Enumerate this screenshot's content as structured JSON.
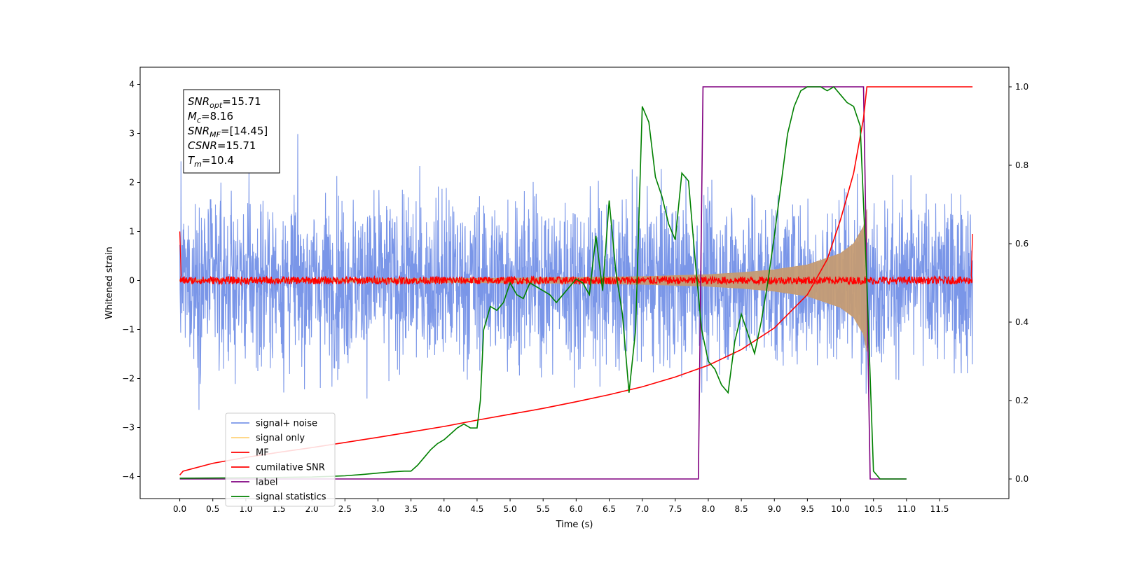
{
  "chart_data": {
    "type": "line",
    "xlabel": "Time (s)",
    "ylabel": "Whitened strain",
    "xlim": [
      -0.6,
      12.55
    ],
    "ylim": [
      -4.45,
      4.35
    ],
    "y2lim": [
      -0.05,
      1.05
    ],
    "xticks": [
      0.0,
      0.5,
      1.0,
      1.5,
      2.0,
      2.5,
      3.0,
      3.5,
      4.0,
      4.5,
      5.0,
      5.5,
      6.0,
      6.5,
      7.0,
      7.5,
      8.0,
      8.5,
      9.0,
      9.5,
      10.0,
      10.5,
      11.0,
      11.5
    ],
    "xtick_labels": [
      "0.0",
      "0.5",
      "1.0",
      "1.5",
      "2.0",
      "2.5",
      "3.0",
      "3.5",
      "4.0",
      "4.5",
      "5.0",
      "5.5",
      "6.0",
      "6.5",
      "7.0",
      "7.5",
      "8.0",
      "8.5",
      "9.0",
      "9.5",
      "10.0",
      "10.5",
      "11.0",
      "11.5"
    ],
    "yticks": [
      4,
      3,
      2,
      1,
      0,
      -1,
      -2,
      -3,
      -4
    ],
    "ytick_labels": [
      "4",
      "3",
      "2",
      "1",
      "0",
      "−1",
      "−2",
      "−3",
      "−4"
    ],
    "y2ticks": [
      1.0,
      0.8,
      0.6,
      0.4,
      0.2,
      0.0
    ],
    "y2tick_labels": [
      "1.0",
      "0.8",
      "0.6",
      "0.4",
      "0.2",
      "0.0"
    ],
    "annotation": [
      {
        "main": "SNR",
        "sub": "opt",
        "rest": "=15.71"
      },
      {
        "main": "M",
        "sub": "c",
        "rest": "=8.16"
      },
      {
        "main": "SNR",
        "sub": "MF",
        "rest": "=[14.45]"
      },
      {
        "main": "CSNR",
        "sub": "",
        "rest": "=15.71"
      },
      {
        "main": "T",
        "sub": "m",
        "rest": "=10.4"
      }
    ],
    "legend_position": "lower-left",
    "legend": [
      {
        "label": "signal+ noise",
        "color": "#7a96e8"
      },
      {
        "label": "signal only",
        "color": "#ffd37a"
      },
      {
        "label": "MF",
        "color": "#ff0000"
      },
      {
        "label": "cumilative SNR",
        "color": "#ff0000"
      },
      {
        "label": "label",
        "color": "#800080"
      },
      {
        "label": "signal statistics",
        "color": "#008000"
      }
    ],
    "series": [
      {
        "name": "signal+ noise",
        "axis": "left",
        "color": "#7a96e8",
        "style": "noise",
        "x_range": [
          0.0,
          12.0
        ],
        "peak_envelope": 4.0,
        "sigma": 1.0
      },
      {
        "name": "signal only",
        "axis": "left",
        "color": "#c49b74",
        "style": "chirp-envelope",
        "x": [
          0.0,
          2.0,
          4.0,
          6.0,
          7.0,
          8.0,
          8.5,
          9.0,
          9.5,
          10.0,
          10.2,
          10.35,
          10.4
        ],
        "amplitude": [
          0.02,
          0.03,
          0.04,
          0.06,
          0.08,
          0.12,
          0.16,
          0.22,
          0.32,
          0.55,
          0.75,
          1.1,
          1.45
        ]
      },
      {
        "name": "MF",
        "axis": "left",
        "color": "#ff0000",
        "style": "noise-band",
        "x_range": [
          0.0,
          12.0
        ],
        "band": 0.08,
        "x_edge": [
          0.0,
          0.02,
          11.98,
          12.0
        ],
        "y_edge": [
          1.0,
          0.1,
          0.1,
          0.95
        ]
      },
      {
        "name": "cumilative SNR",
        "axis": "right",
        "color": "#ff0000",
        "style": "line",
        "x": [
          0.0,
          0.05,
          0.5,
          1.0,
          1.5,
          2.0,
          2.5,
          3.0,
          3.5,
          4.0,
          4.5,
          5.0,
          5.5,
          6.0,
          6.5,
          7.0,
          7.5,
          8.0,
          8.5,
          9.0,
          9.5,
          9.8,
          10.0,
          10.2,
          10.35,
          10.4,
          12.0
        ],
        "y": [
          0.01,
          0.02,
          0.04,
          0.055,
          0.068,
          0.08,
          0.093,
          0.106,
          0.12,
          0.134,
          0.15,
          0.165,
          0.18,
          0.197,
          0.215,
          0.235,
          0.26,
          0.29,
          0.33,
          0.385,
          0.47,
          0.56,
          0.66,
          0.78,
          0.92,
          1.0,
          1.0
        ]
      },
      {
        "name": "label",
        "axis": "right",
        "color": "#800080",
        "style": "line",
        "x": [
          0.0,
          7.85,
          7.92,
          10.35,
          10.45,
          11.0
        ],
        "y": [
          0.0,
          0.0,
          1.0,
          1.0,
          0.0,
          0.0
        ]
      },
      {
        "name": "signal statistics",
        "axis": "right",
        "color": "#008000",
        "style": "line",
        "x": [
          0.0,
          1.0,
          2.0,
          2.5,
          2.8,
          3.0,
          3.2,
          3.4,
          3.5,
          3.6,
          3.7,
          3.8,
          3.9,
          4.0,
          4.1,
          4.2,
          4.3,
          4.4,
          4.5,
          4.55,
          4.6,
          4.7,
          4.8,
          4.9,
          5.0,
          5.1,
          5.2,
          5.3,
          5.4,
          5.5,
          5.6,
          5.7,
          5.8,
          5.9,
          6.0,
          6.1,
          6.2,
          6.3,
          6.4,
          6.5,
          6.6,
          6.7,
          6.8,
          6.9,
          7.0,
          7.1,
          7.2,
          7.3,
          7.4,
          7.5,
          7.6,
          7.7,
          7.8,
          7.9,
          8.0,
          8.1,
          8.2,
          8.3,
          8.4,
          8.5,
          8.6,
          8.7,
          8.8,
          8.9,
          9.0,
          9.1,
          9.2,
          9.3,
          9.4,
          9.5,
          9.6,
          9.7,
          9.8,
          9.9,
          10.0,
          10.1,
          10.2,
          10.3,
          10.4,
          10.5,
          10.6,
          10.8,
          11.0
        ],
        "y": [
          0.002,
          0.003,
          0.005,
          0.008,
          0.012,
          0.015,
          0.018,
          0.02,
          0.02,
          0.035,
          0.055,
          0.075,
          0.09,
          0.1,
          0.115,
          0.13,
          0.14,
          0.13,
          0.13,
          0.2,
          0.38,
          0.44,
          0.43,
          0.45,
          0.5,
          0.47,
          0.46,
          0.5,
          0.49,
          0.48,
          0.47,
          0.45,
          0.47,
          0.49,
          0.51,
          0.5,
          0.47,
          0.62,
          0.48,
          0.71,
          0.53,
          0.42,
          0.22,
          0.38,
          0.95,
          0.91,
          0.77,
          0.72,
          0.65,
          0.61,
          0.78,
          0.76,
          0.56,
          0.38,
          0.3,
          0.28,
          0.24,
          0.22,
          0.35,
          0.42,
          0.37,
          0.32,
          0.4,
          0.5,
          0.62,
          0.75,
          0.88,
          0.95,
          0.99,
          1.0,
          1.0,
          1.0,
          0.99,
          1.0,
          0.98,
          0.96,
          0.95,
          0.9,
          0.5,
          0.02,
          0.0,
          0.0,
          0.0
        ]
      }
    ]
  }
}
